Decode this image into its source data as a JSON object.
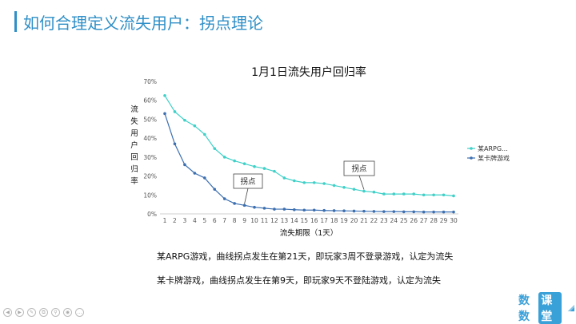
{
  "slide": {
    "title": "如何合理定义流失用户：拐点理论"
  },
  "chart_data": {
    "type": "line",
    "title": "1月1日流失用户回归率",
    "xlabel": "流失期限（1天）",
    "ylabel": "流失用户回归率",
    "ylim": [
      0,
      70
    ],
    "yticks": [
      "0%",
      "10%",
      "20%",
      "30%",
      "40%",
      "50%",
      "60%",
      "70%"
    ],
    "categories": [
      1,
      2,
      3,
      4,
      5,
      6,
      7,
      8,
      9,
      10,
      11,
      12,
      13,
      14,
      15,
      16,
      17,
      18,
      19,
      20,
      21,
      22,
      23,
      24,
      25,
      26,
      27,
      28,
      29,
      30
    ],
    "grid": false,
    "legend_position": "right",
    "series": [
      {
        "name": "某ARPG...",
        "color": "#3fd0c8",
        "values": [
          62.5,
          54,
          49.5,
          46.5,
          42,
          34.5,
          30,
          28,
          26.5,
          25,
          24,
          22.5,
          19,
          17.5,
          16.5,
          16.5,
          16,
          15,
          14,
          13,
          12,
          11.5,
          10.5,
          10.5,
          10.5,
          10.5,
          10,
          10,
          10,
          9.5
        ]
      },
      {
        "name": "某卡牌游戏",
        "color": "#3c6fb0",
        "values": [
          53,
          37,
          26,
          21.5,
          19,
          13,
          8,
          5.5,
          4.5,
          3.5,
          3,
          2.5,
          2.5,
          2.2,
          2,
          2,
          1.8,
          1.7,
          1.6,
          1.5,
          1.4,
          1.3,
          1.2,
          1.2,
          1.1,
          1.1,
          1,
          1,
          1,
          1
        ]
      }
    ],
    "annotations": [
      {
        "text": "拐点",
        "series": 1,
        "x": 9
      },
      {
        "text": "拐点",
        "series": 0,
        "x": 21
      }
    ]
  },
  "notes": [
    "某ARPG游戏，曲线拐点发生在第21天，即玩家3周不登录游戏，认定为流失",
    "某卡牌游戏，曲线拐点发生在第9天，即玩家9天不登陆游戏，认定为流失"
  ],
  "toolbar": {
    "buttons": [
      "◀",
      "▶",
      "✎",
      "⧉",
      "⚲",
      "◉",
      "…"
    ]
  },
  "brand": {
    "part1": "数数",
    "part2": "课堂"
  },
  "colors": {
    "accent": "#2f8fc7",
    "brand": "#3aa0d8"
  }
}
